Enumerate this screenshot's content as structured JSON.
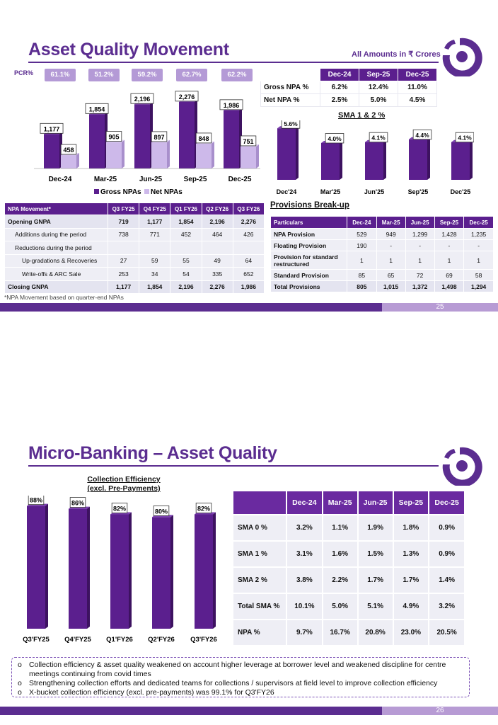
{
  "slide1": {
    "title": "Asset Quality Movement",
    "amounts_note": "All Amounts in ₹ Crores",
    "pcr_label": "PCR%",
    "pcr_values": [
      "61.1%",
      "51.2%",
      "59.2%",
      "62.7%",
      "62.2%"
    ],
    "npa_chart": {
      "legend": [
        "Gross NPAs",
        "Net NPAs"
      ]
    },
    "gnpa_table": {
      "headers": [
        "",
        "Dec-24",
        "Sep-25",
        "Dec-25"
      ],
      "rows": [
        [
          "Gross NPA %",
          "6.2%",
          "12.4%",
          "11.0%"
        ],
        [
          "Net NPA %",
          "2.5%",
          "5.0%",
          "4.5%"
        ]
      ]
    },
    "sma_chart": {
      "title": "SMA 1 & 2 %"
    },
    "npa_movement": {
      "headers": [
        "NPA Movement*",
        "Q3 FY25",
        "Q4 FY25",
        "Q1 FY26",
        "Q2 FY26",
        "Q3 FY26"
      ],
      "rows": [
        {
          "label": "Opening GNPA",
          "values": [
            "719",
            "1,177",
            "1,854",
            "2,196",
            "2,276"
          ],
          "indent": 0,
          "bold": true
        },
        {
          "label": "Additions during the period",
          "values": [
            "738",
            "771",
            "452",
            "464",
            "426"
          ],
          "indent": 1,
          "bold": false
        },
        {
          "label": "Reductions during the period",
          "values": [
            "",
            "",
            "",
            "",
            ""
          ],
          "indent": 1,
          "bold": false
        },
        {
          "label": "Up-gradations & Recoveries",
          "values": [
            "27",
            "59",
            "55",
            "49",
            "64"
          ],
          "indent": 2,
          "bold": false
        },
        {
          "label": "Write-offs & ARC Sale",
          "values": [
            "253",
            "34",
            "54",
            "335",
            "652"
          ],
          "indent": 2,
          "bold": false
        },
        {
          "label": "Closing GNPA",
          "values": [
            "1,177",
            "1,854",
            "2,196",
            "2,276",
            "1,986"
          ],
          "indent": 0,
          "bold": true
        }
      ],
      "footnote": "*NPA Movement based on quarter-end NPAs"
    },
    "provisions": {
      "title": "Provisions Break-up",
      "headers": [
        "Particulars",
        "Dec-24",
        "Mar-25",
        "Jun-25",
        "Sep-25",
        "Dec-25"
      ],
      "rows": [
        {
          "label": "NPA Provision",
          "values": [
            "529",
            "949",
            "1,299",
            "1,428",
            "1,235"
          ],
          "tall": false,
          "bold": false
        },
        {
          "label": "Floating Provision",
          "values": [
            "190",
            "-",
            "-",
            "-",
            "-"
          ],
          "tall": false,
          "bold": false
        },
        {
          "label": "Provision for standard restructured",
          "values": [
            "1",
            "1",
            "1",
            "1",
            "1"
          ],
          "tall": true,
          "bold": false
        },
        {
          "label": "Standard Provision",
          "values": [
            "85",
            "65",
            "72",
            "69",
            "58"
          ],
          "tall": false,
          "bold": false
        },
        {
          "label": "Total Provisions",
          "values": [
            "805",
            "1,015",
            "1,372",
            "1,498",
            "1,294"
          ],
          "tall": false,
          "bold": true
        }
      ]
    },
    "page_number": "25"
  },
  "slide2": {
    "title": "Micro-Banking – Asset Quality",
    "ce_title_line1": "Collection Efficiency",
    "ce_title_line2": "(excl. Pre-Payments)",
    "sma_table": {
      "headers": [
        "",
        "Dec-24",
        "Mar-25",
        "Jun-25",
        "Sep-25",
        "Dec-25"
      ],
      "rows": [
        [
          "SMA 0 %",
          "3.2%",
          "1.1%",
          "1.9%",
          "1.8%",
          "0.9%"
        ],
        [
          "SMA 1 %",
          "3.1%",
          "1.6%",
          "1.5%",
          "1.3%",
          "0.9%"
        ],
        [
          "SMA 2 %",
          "3.8%",
          "2.2%",
          "1.7%",
          "1.7%",
          "1.4%"
        ],
        [
          "Total SMA %",
          "10.1%",
          "5.0%",
          "5.1%",
          "4.9%",
          "3.2%"
        ],
        [
          "NPA %",
          "9.7%",
          "16.7%",
          "20.8%",
          "23.0%",
          "20.5%"
        ]
      ]
    },
    "bullets": [
      "Collection efficiency & asset quality weakened on account higher leverage at borrower level and weakened discipline for centre meetings continuing from covid times",
      "Strengthening collection efforts and dedicated teams for collections / supervisors at field level to improve collection efficiency",
      "X-bucket collection efficiency (excl. pre-payments) was 99.1% for Q3'FY26"
    ],
    "page_number": "26"
  },
  "colors": {
    "brand": "#5b2d90",
    "bar_dark": "#5b1f8e",
    "bar_light": "#c9b6e6",
    "footer_light": "#b79bd4"
  },
  "chart_data": [
    {
      "type": "bar",
      "title": "",
      "categories": [
        "Dec-24",
        "Mar-25",
        "Jun-25",
        "Sep-25",
        "Dec-25"
      ],
      "series": [
        {
          "name": "Gross NPAs",
          "values": [
            1177,
            1854,
            2196,
            2276,
            1986
          ],
          "labels": [
            "1,177",
            "1,854",
            "2,196",
            "2,276",
            "1,986"
          ]
        },
        {
          "name": "Net NPAs",
          "values": [
            458,
            905,
            897,
            848,
            751
          ],
          "labels": [
            "458",
            "905",
            "897",
            "848",
            "751"
          ]
        }
      ],
      "ylim": [
        0,
        2500
      ],
      "legend": "bottom"
    },
    {
      "type": "bar",
      "title": "SMA 1 & 2 %",
      "categories": [
        "Dec'24",
        "Mar'25",
        "Jun'25",
        "Sep'25",
        "Dec'25"
      ],
      "values": [
        5.6,
        4.0,
        4.1,
        4.4,
        4.1
      ],
      "labels": [
        "5.6%",
        "4.0%",
        "4.1%",
        "4.4%",
        "4.1%"
      ],
      "ylim": [
        0,
        6.5
      ]
    },
    {
      "type": "bar",
      "title": "Collection Efficiency (excl. Pre-Payments)",
      "categories": [
        "Q3'FY25",
        "Q4'FY25",
        "Q1'FY26",
        "Q2'FY26",
        "Q3'FY26"
      ],
      "values": [
        88,
        86,
        82,
        80,
        82
      ],
      "labels": [
        "88%",
        "86%",
        "82%",
        "80%",
        "82%"
      ],
      "ylim": [
        0,
        100
      ]
    }
  ]
}
